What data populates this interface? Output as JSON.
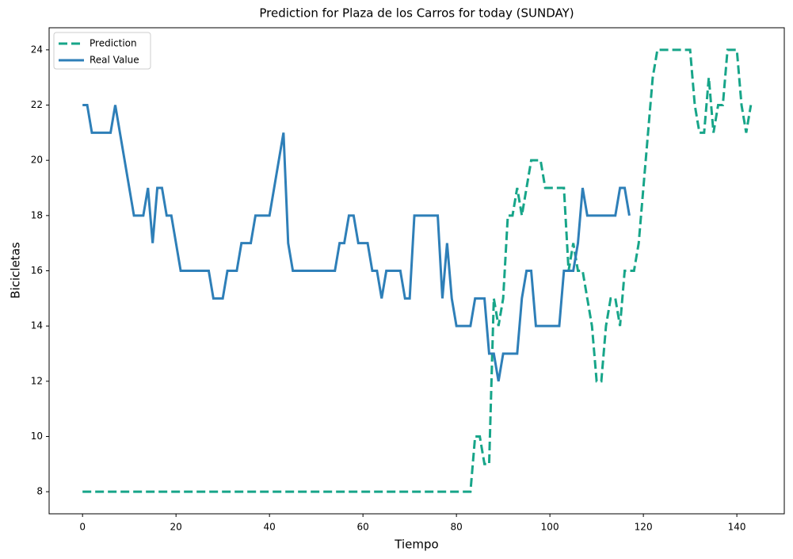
{
  "chart_data": {
    "type": "line",
    "title": "Prediction for Plaza de los Carros for today (SUNDAY)",
    "xlabel": "Tiempo",
    "ylabel": "Bicicletas",
    "x": [
      0,
      1,
      2,
      3,
      4,
      5,
      6,
      7,
      8,
      9,
      10,
      11,
      12,
      13,
      14,
      15,
      16,
      17,
      18,
      19,
      20,
      21,
      22,
      23,
      24,
      25,
      26,
      27,
      28,
      29,
      30,
      31,
      32,
      33,
      34,
      35,
      36,
      37,
      38,
      39,
      40,
      41,
      42,
      43,
      44,
      45,
      46,
      47,
      48,
      49,
      50,
      51,
      52,
      53,
      54,
      55,
      56,
      57,
      58,
      59,
      60,
      61,
      62,
      63,
      64,
      65,
      66,
      67,
      68,
      69,
      70,
      71,
      72,
      73,
      74,
      75,
      76,
      77,
      78,
      79,
      80,
      81,
      82,
      83,
      84,
      85,
      86,
      87,
      88,
      89,
      90,
      91,
      92,
      93,
      94,
      95,
      96,
      97,
      98,
      99,
      100,
      101,
      102,
      103,
      104,
      105,
      106,
      107,
      108,
      109,
      110,
      111,
      112,
      113,
      114,
      115,
      116,
      117,
      118,
      119,
      120,
      121,
      122,
      123,
      124,
      125,
      126,
      127,
      128,
      129,
      130,
      131,
      132,
      133,
      134,
      135,
      136,
      137,
      138,
      139,
      140,
      141,
      142,
      143
    ],
    "series": [
      {
        "name": "Prediction",
        "color": "#17a589",
        "dashed": true,
        "values": [
          8,
          8,
          8,
          8,
          8,
          8,
          8,
          8,
          8,
          8,
          8,
          8,
          8,
          8,
          8,
          8,
          8,
          8,
          8,
          8,
          8,
          8,
          8,
          8,
          8,
          8,
          8,
          8,
          8,
          8,
          8,
          8,
          8,
          8,
          8,
          8,
          8,
          8,
          8,
          8,
          8,
          8,
          8,
          8,
          8,
          8,
          8,
          8,
          8,
          8,
          8,
          8,
          8,
          8,
          8,
          8,
          8,
          8,
          8,
          8,
          8,
          8,
          8,
          8,
          8,
          8,
          8,
          8,
          8,
          8,
          8,
          8,
          8,
          8,
          8,
          8,
          8,
          8,
          8,
          8,
          8,
          8,
          8,
          8,
          10,
          10,
          9,
          9,
          15,
          14,
          15,
          18,
          18,
          19,
          18,
          19,
          20,
          20,
          20,
          19,
          19,
          19,
          19,
          19,
          16,
          17,
          16,
          16,
          15,
          14,
          12,
          12,
          14,
          15,
          15,
          14,
          16,
          16,
          16,
          17,
          19,
          21,
          23,
          24,
          24,
          24,
          24,
          24,
          24,
          24,
          24,
          22,
          21,
          21,
          23,
          21,
          22,
          22,
          24,
          24,
          24,
          22,
          21,
          22
        ]
      },
      {
        "name": "Real Value",
        "color": "#2e7fb8",
        "dashed": false,
        "values": [
          22,
          22,
          21,
          21,
          21,
          21,
          21,
          22,
          21,
          20,
          19,
          18,
          18,
          18,
          19,
          17,
          19,
          19,
          18,
          18,
          17,
          16,
          16,
          16,
          16,
          16,
          16,
          16,
          15,
          15,
          15,
          16,
          16,
          16,
          17,
          17,
          17,
          18,
          18,
          18,
          18,
          19,
          20,
          21,
          17,
          16,
          16,
          16,
          16,
          16,
          16,
          16,
          16,
          16,
          16,
          17,
          17,
          18,
          18,
          17,
          17,
          17,
          16,
          16,
          15,
          16,
          16,
          16,
          16,
          15,
          15,
          18,
          18,
          18,
          18,
          18,
          18,
          15,
          17,
          15,
          14,
          14,
          14,
          14,
          15,
          15,
          15,
          13,
          13,
          12,
          13,
          13,
          13,
          13,
          15,
          16,
          16,
          14,
          14,
          14,
          14,
          14,
          14,
          16,
          16,
          16,
          17,
          19,
          18,
          18,
          18,
          18,
          18,
          18,
          18,
          19,
          19,
          18,
          null,
          null,
          null,
          null,
          null,
          null,
          null,
          null,
          null,
          null,
          null,
          null,
          null,
          null,
          null,
          null,
          null,
          null,
          null,
          null,
          null,
          null,
          null,
          null,
          null,
          null
        ]
      }
    ],
    "xlim": [
      -7.15,
      150.15
    ],
    "ylim": [
      7.2,
      24.8
    ],
    "xticks": [
      0,
      20,
      40,
      60,
      80,
      100,
      120,
      140
    ],
    "yticks": [
      8,
      10,
      12,
      14,
      16,
      18,
      20,
      22,
      24
    ],
    "grid": false,
    "legend": "upper left"
  }
}
